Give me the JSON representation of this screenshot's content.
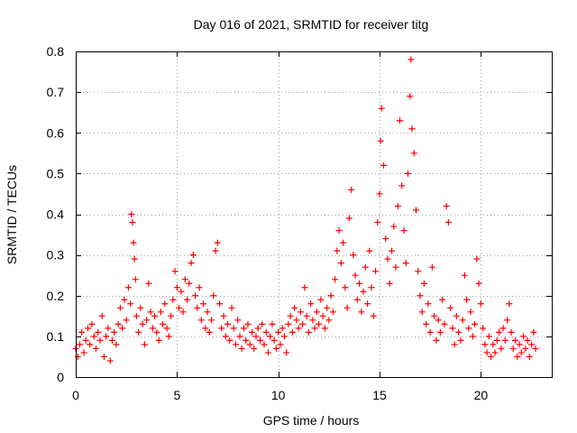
{
  "chart_data": {
    "type": "scatter",
    "title": "Day 016 of 2021, SRMTID for receiver titg",
    "xlabel": "GPS time / hours",
    "ylabel": "SRMTID / TECUs",
    "xlim": [
      0,
      23.5
    ],
    "ylim": [
      0,
      0.8
    ],
    "x_ticks": [
      0,
      5,
      10,
      15,
      20
    ],
    "x_tick_labels": [
      "0",
      "5",
      "10",
      "15",
      "20"
    ],
    "y_ticks": [
      0,
      0.1,
      0.2,
      0.3,
      0.4,
      0.5,
      0.6,
      0.7,
      0.8
    ],
    "y_tick_labels": [
      "0",
      "0.1",
      "0.2",
      "0.3",
      "0.4",
      "0.5",
      "0.6",
      "0.7",
      "0.8"
    ],
    "grid": true,
    "marker": "+",
    "color": "#ff0000",
    "series": [
      {
        "name": "SRMTID",
        "points": [
          [
            0.0,
            0.07
          ],
          [
            0.1,
            0.05
          ],
          [
            0.2,
            0.08
          ],
          [
            0.3,
            0.11
          ],
          [
            0.4,
            0.06
          ],
          [
            0.5,
            0.09
          ],
          [
            0.6,
            0.12
          ],
          [
            0.7,
            0.08
          ],
          [
            0.8,
            0.13
          ],
          [
            0.9,
            0.1
          ],
          [
            1.0,
            0.07
          ],
          [
            1.1,
            0.11
          ],
          [
            1.2,
            0.09
          ],
          [
            1.3,
            0.15
          ],
          [
            1.4,
            0.05
          ],
          [
            1.5,
            0.1
          ],
          [
            1.6,
            0.12
          ],
          [
            1.7,
            0.04
          ],
          [
            1.8,
            0.09
          ],
          [
            1.9,
            0.11
          ],
          [
            2.0,
            0.08
          ],
          [
            2.1,
            0.13
          ],
          [
            2.2,
            0.17
          ],
          [
            2.3,
            0.12
          ],
          [
            2.4,
            0.19
          ],
          [
            2.5,
            0.14
          ],
          [
            2.6,
            0.22
          ],
          [
            2.7,
            0.18
          ],
          [
            2.75,
            0.4
          ],
          [
            2.8,
            0.38
          ],
          [
            2.85,
            0.33
          ],
          [
            2.9,
            0.29
          ],
          [
            2.95,
            0.24
          ],
          [
            3.0,
            0.15
          ],
          [
            3.1,
            0.11
          ],
          [
            3.2,
            0.17
          ],
          [
            3.3,
            0.13
          ],
          [
            3.4,
            0.08
          ],
          [
            3.5,
            0.14
          ],
          [
            3.6,
            0.23
          ],
          [
            3.7,
            0.16
          ],
          [
            3.8,
            0.12
          ],
          [
            3.9,
            0.15
          ],
          [
            4.0,
            0.11
          ],
          [
            4.1,
            0.09
          ],
          [
            4.2,
            0.16
          ],
          [
            4.3,
            0.13
          ],
          [
            4.4,
            0.18
          ],
          [
            4.5,
            0.12
          ],
          [
            4.6,
            0.1
          ],
          [
            4.7,
            0.15
          ],
          [
            4.8,
            0.19
          ],
          [
            4.9,
            0.26
          ],
          [
            5.0,
            0.22
          ],
          [
            5.1,
            0.17
          ],
          [
            5.2,
            0.21
          ],
          [
            5.3,
            0.16
          ],
          [
            5.4,
            0.24
          ],
          [
            5.5,
            0.19
          ],
          [
            5.6,
            0.23
          ],
          [
            5.7,
            0.28
          ],
          [
            5.8,
            0.3
          ],
          [
            5.9,
            0.2
          ],
          [
            6.0,
            0.17
          ],
          [
            6.1,
            0.22
          ],
          [
            6.2,
            0.14
          ],
          [
            6.3,
            0.18
          ],
          [
            6.4,
            0.12
          ],
          [
            6.5,
            0.16
          ],
          [
            6.6,
            0.11
          ],
          [
            6.7,
            0.14
          ],
          [
            6.8,
            0.2
          ],
          [
            6.9,
            0.31
          ],
          [
            7.0,
            0.33
          ],
          [
            7.1,
            0.18
          ],
          [
            7.2,
            0.12
          ],
          [
            7.3,
            0.15
          ],
          [
            7.4,
            0.1
          ],
          [
            7.5,
            0.13
          ],
          [
            7.6,
            0.09
          ],
          [
            7.7,
            0.17
          ],
          [
            7.8,
            0.12
          ],
          [
            7.9,
            0.08
          ],
          [
            8.0,
            0.14
          ],
          [
            8.1,
            0.1
          ],
          [
            8.2,
            0.07
          ],
          [
            8.3,
            0.12
          ],
          [
            8.4,
            0.09
          ],
          [
            8.5,
            0.13
          ],
          [
            8.6,
            0.08
          ],
          [
            8.7,
            0.11
          ],
          [
            8.8,
            0.07
          ],
          [
            8.9,
            0.1
          ],
          [
            9.0,
            0.12
          ],
          [
            9.1,
            0.09
          ],
          [
            9.2,
            0.13
          ],
          [
            9.3,
            0.08
          ],
          [
            9.4,
            0.11
          ],
          [
            9.5,
            0.06
          ],
          [
            9.6,
            0.1
          ],
          [
            9.7,
            0.13
          ],
          [
            9.8,
            0.09
          ],
          [
            9.9,
            0.07
          ],
          [
            10.0,
            0.11
          ],
          [
            10.1,
            0.08
          ],
          [
            10.2,
            0.12
          ],
          [
            10.3,
            0.1
          ],
          [
            10.4,
            0.06
          ],
          [
            10.5,
            0.13
          ],
          [
            10.6,
            0.15
          ],
          [
            10.7,
            0.11
          ],
          [
            10.8,
            0.17
          ],
          [
            10.9,
            0.14
          ],
          [
            11.0,
            0.12
          ],
          [
            11.1,
            0.16
          ],
          [
            11.2,
            0.13
          ],
          [
            11.3,
            0.22
          ],
          [
            11.4,
            0.15
          ],
          [
            11.5,
            0.11
          ],
          [
            11.6,
            0.18
          ],
          [
            11.7,
            0.14
          ],
          [
            11.8,
            0.12
          ],
          [
            11.9,
            0.16
          ],
          [
            12.0,
            0.13
          ],
          [
            12.1,
            0.19
          ],
          [
            12.2,
            0.15
          ],
          [
            12.3,
            0.12
          ],
          [
            12.4,
            0.17
          ],
          [
            12.5,
            0.14
          ],
          [
            12.6,
            0.2
          ],
          [
            12.7,
            0.16
          ],
          [
            12.8,
            0.24
          ],
          [
            12.9,
            0.31
          ],
          [
            13.0,
            0.36
          ],
          [
            13.1,
            0.28
          ],
          [
            13.2,
            0.33
          ],
          [
            13.3,
            0.22
          ],
          [
            13.4,
            0.17
          ],
          [
            13.5,
            0.39
          ],
          [
            13.6,
            0.46
          ],
          [
            13.7,
            0.3
          ],
          [
            13.8,
            0.25
          ],
          [
            13.9,
            0.19
          ],
          [
            14.0,
            0.23
          ],
          [
            14.1,
            0.16
          ],
          [
            14.2,
            0.21
          ],
          [
            14.3,
            0.27
          ],
          [
            14.4,
            0.18
          ],
          [
            14.5,
            0.31
          ],
          [
            14.6,
            0.22
          ],
          [
            14.7,
            0.15
          ],
          [
            14.8,
            0.26
          ],
          [
            14.9,
            0.38
          ],
          [
            15.0,
            0.45
          ],
          [
            15.05,
            0.58
          ],
          [
            15.1,
            0.66
          ],
          [
            15.2,
            0.52
          ],
          [
            15.3,
            0.34
          ],
          [
            15.4,
            0.29
          ],
          [
            15.5,
            0.23
          ],
          [
            15.6,
            0.31
          ],
          [
            15.7,
            0.37
          ],
          [
            15.8,
            0.27
          ],
          [
            15.9,
            0.42
          ],
          [
            16.0,
            0.63
          ],
          [
            16.1,
            0.47
          ],
          [
            16.2,
            0.36
          ],
          [
            16.3,
            0.28
          ],
          [
            16.4,
            0.5
          ],
          [
            16.5,
            0.69
          ],
          [
            16.55,
            0.78
          ],
          [
            16.6,
            0.61
          ],
          [
            16.7,
            0.55
          ],
          [
            16.8,
            0.41
          ],
          [
            16.9,
            0.26
          ],
          [
            17.0,
            0.2
          ],
          [
            17.1,
            0.16
          ],
          [
            17.2,
            0.23
          ],
          [
            17.3,
            0.13
          ],
          [
            17.4,
            0.18
          ],
          [
            17.5,
            0.11
          ],
          [
            17.6,
            0.27
          ],
          [
            17.7,
            0.15
          ],
          [
            17.8,
            0.09
          ],
          [
            17.9,
            0.14
          ],
          [
            18.0,
            0.11
          ],
          [
            18.1,
            0.19
          ],
          [
            18.2,
            0.13
          ],
          [
            18.3,
            0.42
          ],
          [
            18.4,
            0.38
          ],
          [
            18.5,
            0.17
          ],
          [
            18.6,
            0.12
          ],
          [
            18.7,
            0.08
          ],
          [
            18.8,
            0.15
          ],
          [
            18.9,
            0.11
          ],
          [
            19.0,
            0.09
          ],
          [
            19.1,
            0.14
          ],
          [
            19.2,
            0.25
          ],
          [
            19.3,
            0.19
          ],
          [
            19.4,
            0.12
          ],
          [
            19.5,
            0.16
          ],
          [
            19.6,
            0.1
          ],
          [
            19.7,
            0.13
          ],
          [
            19.8,
            0.29
          ],
          [
            19.9,
            0.23
          ],
          [
            20.0,
            0.18
          ],
          [
            20.1,
            0.12
          ],
          [
            20.2,
            0.08
          ],
          [
            20.3,
            0.06
          ],
          [
            20.4,
            0.1
          ],
          [
            20.5,
            0.05
          ],
          [
            20.6,
            0.08
          ],
          [
            20.7,
            0.06
          ],
          [
            20.8,
            0.09
          ],
          [
            20.9,
            0.11
          ],
          [
            21.0,
            0.07
          ],
          [
            21.1,
            0.12
          ],
          [
            21.2,
            0.09
          ],
          [
            21.3,
            0.14
          ],
          [
            21.4,
            0.18
          ],
          [
            21.5,
            0.11
          ],
          [
            21.6,
            0.07
          ],
          [
            21.7,
            0.09
          ],
          [
            21.8,
            0.05
          ],
          [
            21.9,
            0.08
          ],
          [
            22.0,
            0.06
          ],
          [
            22.1,
            0.1
          ],
          [
            22.2,
            0.07
          ],
          [
            22.3,
            0.09
          ],
          [
            22.4,
            0.05
          ],
          [
            22.5,
            0.08
          ],
          [
            22.6,
            0.11
          ],
          [
            22.7,
            0.07
          ]
        ]
      }
    ]
  }
}
